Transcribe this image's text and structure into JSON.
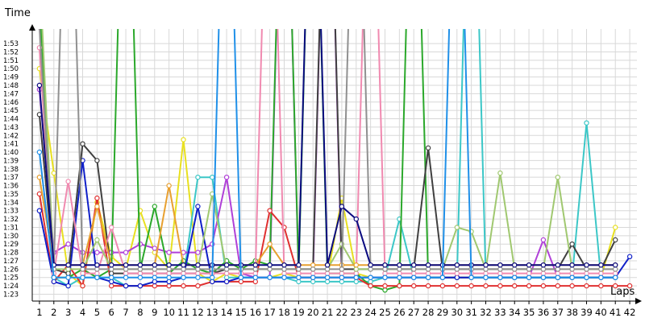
{
  "chart_data": {
    "type": "line",
    "ylabel": "Time",
    "xlabel": "Laps",
    "x": [
      1,
      2,
      3,
      4,
      5,
      6,
      7,
      8,
      9,
      10,
      11,
      12,
      13,
      14,
      15,
      16,
      17,
      18,
      19,
      20,
      21,
      22,
      23,
      24,
      25,
      26,
      27,
      28,
      29,
      30,
      31,
      32,
      33,
      34,
      35,
      36,
      37,
      38,
      39,
      40,
      41,
      42
    ],
    "y_ticks": [
      "1:23",
      "1:24",
      "1:25",
      "1:26",
      "1:27",
      "1:28",
      "1:29",
      "1:30",
      "1:31",
      "1:32",
      "1:33",
      "1:34",
      "1:35",
      "1:36",
      "1:37",
      "1:38",
      "1:39",
      "1:40",
      "1:41",
      "1:42",
      "1:43",
      "1:44",
      "1:45",
      "1:46",
      "1:47",
      "1:48",
      "1:49",
      "1:50",
      "1:51",
      "1:52",
      "1:53"
    ],
    "ylim_seconds": [
      83,
      114
    ],
    "xlim": [
      0.5,
      42.5
    ],
    "grid": true,
    "series": [
      {
        "color": "#e8e020",
        "values": [
          110,
          97.5,
          85.5,
          84,
          94,
          87.5,
          86,
          93,
          88,
          86,
          101.5,
          85.5,
          84.5,
          85.5,
          85,
          85,
          85,
          85.5,
          85,
          85,
          85,
          94.5,
          85.5,
          85,
          85,
          85,
          85,
          85,
          85,
          85,
          85,
          85,
          85,
          85,
          85,
          85,
          85,
          85,
          85,
          85,
          91,
          null
        ]
      },
      {
        "color": "#3cc7c7",
        "values": [
          120,
          85,
          84,
          85,
          85,
          85,
          84,
          84,
          84.5,
          84.5,
          85,
          97,
          97,
          85,
          85,
          85,
          85,
          85,
          84.5,
          84.5,
          84.5,
          84.5,
          84.5,
          84.5,
          85,
          92,
          85,
          85,
          85,
          85,
          150,
          85,
          85,
          85,
          85,
          85,
          85,
          85,
          103.5,
          85,
          85,
          null
        ]
      },
      {
        "color": "#b040d8",
        "values": [
          107.5,
          88,
          89,
          88,
          88,
          88,
          88,
          89,
          88.5,
          88,
          88,
          88,
          89,
          97,
          85.5,
          85,
          85,
          150,
          85,
          85,
          150,
          85,
          85,
          85,
          85,
          85,
          85,
          85,
          85,
          85,
          85,
          85,
          85,
          85,
          85,
          89.5,
          85,
          85,
          85,
          85,
          85,
          null
        ]
      },
      {
        "color": "#2ba82b",
        "values": [
          118,
          85,
          85,
          86,
          85,
          86,
          150,
          86,
          93.5,
          85.5,
          87,
          86,
          85.5,
          87,
          86,
          87,
          86.5,
          150,
          85.5,
          150,
          85.5,
          85.5,
          85.5,
          84,
          83.5,
          84,
          150,
          85,
          85,
          85,
          85,
          85,
          85,
          85,
          85,
          85,
          85,
          85,
          85,
          85,
          85,
          null
        ]
      },
      {
        "color": "#e03030",
        "values": [
          95,
          84.5,
          86.5,
          84,
          94.5,
          84,
          84,
          84,
          84,
          84,
          84,
          84,
          84.5,
          84.5,
          84.5,
          84.5,
          93,
          91,
          85,
          85,
          85,
          85,
          85,
          84,
          84,
          84,
          84,
          84,
          84,
          84,
          84,
          84,
          84,
          84,
          84,
          84,
          84,
          84,
          84,
          84,
          84,
          84
        ]
      },
      {
        "color": "#1020c8",
        "values": [
          93,
          84.5,
          84,
          99,
          85,
          84.5,
          84,
          84,
          84.5,
          84.5,
          85,
          93.5,
          84.5,
          84.5,
          85,
          85,
          85,
          85,
          85,
          85,
          85,
          85,
          85,
          85,
          85,
          85,
          85,
          85,
          85,
          85,
          85,
          85,
          85,
          85,
          85,
          85,
          85,
          85,
          85,
          85,
          85,
          87.5
        ]
      },
      {
        "color": "#404040",
        "values": [
          104.5,
          86,
          85.5,
          101,
          99,
          85.5,
          85.5,
          85.5,
          85.5,
          85.5,
          85.5,
          85.5,
          85.5,
          86,
          86,
          86,
          86,
          86,
          86,
          86,
          150,
          86,
          86,
          86,
          86,
          86,
          86,
          100.5,
          86,
          86,
          86,
          86,
          86,
          86,
          86,
          86,
          86,
          89,
          86,
          86,
          89.5,
          null
        ]
      },
      {
        "color": "#f08ab0",
        "values": [
          112.5,
          85.5,
          96.5,
          85.5,
          85.5,
          91,
          85.5,
          85.5,
          85.5,
          85.5,
          85.5,
          85.5,
          85.5,
          85.5,
          85.5,
          85.5,
          150,
          85.5,
          85.5,
          85.5,
          85.5,
          85.5,
          85.5,
          150,
          85.5,
          85.5,
          85.5,
          85.5,
          85.5,
          85.5,
          85.5,
          85.5,
          85.5,
          85.5,
          85.5,
          85.5,
          85.5,
          85.5,
          85.5,
          85.5,
          85.5,
          null
        ]
      },
      {
        "color": "#a0c870",
        "values": [
          122,
          86,
          86,
          86,
          89.5,
          86,
          86,
          86,
          86,
          86,
          86,
          86,
          95,
          86,
          86,
          86,
          86,
          86,
          86,
          86,
          86,
          89,
          86,
          86,
          86,
          86,
          86,
          86,
          86,
          91,
          90.5,
          86,
          97.5,
          86,
          86,
          86,
          97,
          86,
          86,
          86,
          86,
          null
        ]
      },
      {
        "color": "#e8a030",
        "values": [
          97,
          86.5,
          86.5,
          86.5,
          93.5,
          86.5,
          86.5,
          86.5,
          86.5,
          96,
          86.5,
          86.5,
          86.5,
          86.5,
          86.5,
          86.5,
          89,
          86.5,
          86.5,
          86.5,
          86.5,
          86.5,
          86.5,
          86.5,
          86.5,
          86.5,
          86.5,
          86.5,
          86.5,
          86.5,
          86.5,
          86.5,
          86.5,
          86.5,
          86.5,
          86.5,
          86.5,
          86.5,
          86.5,
          86.5,
          86.5,
          null
        ]
      },
      {
        "color": "#909090",
        "values": [
          115,
          86,
          150,
          86,
          86,
          86,
          86,
          86,
          86,
          86,
          86,
          86,
          86,
          86,
          86,
          86,
          86,
          86,
          86,
          86,
          86,
          86,
          150,
          86,
          86,
          86,
          86,
          86,
          86,
          86,
          86,
          86,
          86,
          86,
          86,
          86,
          86,
          86,
          86,
          86,
          86,
          null
        ]
      },
      {
        "color": "#0a0a80",
        "values": [
          108,
          86.5,
          86.5,
          86.5,
          86.5,
          86.5,
          86.5,
          86.5,
          86.5,
          86.5,
          86.5,
          86.5,
          86.5,
          86.5,
          86.5,
          86.5,
          86.5,
          86.5,
          86.5,
          150,
          86.5,
          93.5,
          92,
          86.5,
          86.5,
          86.5,
          86.5,
          86.5,
          86.5,
          86.5,
          86.5,
          86.5,
          86.5,
          86.5,
          86.5,
          86.5,
          86.5,
          86.5,
          86.5,
          86.5,
          86.5,
          null
        ]
      },
      {
        "color": "#2090e8",
        "values": [
          100,
          85,
          85,
          85,
          85,
          85,
          85,
          85,
          85,
          85,
          85,
          85,
          85,
          150,
          85,
          85,
          85,
          85,
          85,
          85,
          85,
          85,
          85,
          85,
          85,
          85,
          85,
          85,
          85,
          150,
          85,
          85,
          85,
          85,
          85,
          85,
          85,
          85,
          85,
          85,
          85,
          null
        ]
      }
    ]
  }
}
